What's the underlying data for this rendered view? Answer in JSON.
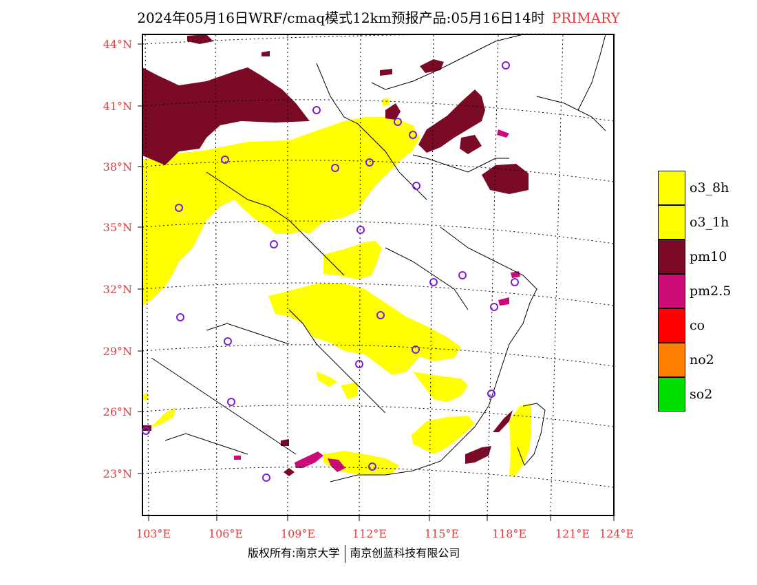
{
  "title": {
    "main": "2024年05月16日WRF/cmaq模式12km预报产品:05月16日14时",
    "tag": "PRIMARY"
  },
  "axes": {
    "lat_labels": [
      "44°N",
      "41°N",
      "38°N",
      "35°N",
      "32°N",
      "29°N",
      "26°N",
      "23°N"
    ],
    "lon_labels": [
      "103°E",
      "106°E",
      "109°E",
      "112°E",
      "115°E",
      "118°E",
      "121°E",
      "124°E"
    ]
  },
  "legend": [
    {
      "label": "o3_8h",
      "color": "#ffff00"
    },
    {
      "label": "o3_1h",
      "color": "#ffff00"
    },
    {
      "label": "pm10",
      "color": "#7a0a26"
    },
    {
      "label": "pm2.5",
      "color": "#cc0a78"
    },
    {
      "label": "co",
      "color": "#ff0000"
    },
    {
      "label": "no2",
      "color": "#ff7f00"
    },
    {
      "label": "so2",
      "color": "#00dd00"
    }
  ],
  "colors": {
    "axis_label": "#e23a3a",
    "station_marker": "#7a1fd6"
  },
  "footer": {
    "left": "版权所有:南京大学",
    "right": "南京创蓝科技有限公司"
  }
}
